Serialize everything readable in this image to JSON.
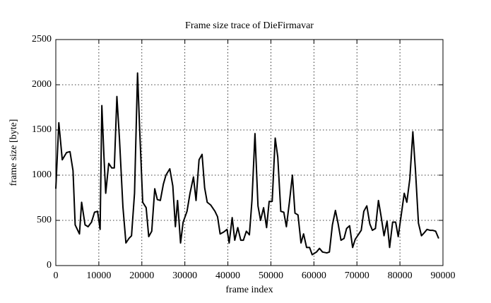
{
  "chart_data": {
    "type": "line",
    "title": "Frame size trace of DieFirmavar",
    "x_label": "frame index",
    "y_label": "frame size [byte]",
    "xlim": [
      0,
      90000
    ],
    "xticks": [
      0,
      10000,
      20000,
      30000,
      40000,
      50000,
      60000,
      70000,
      80000,
      90000
    ],
    "ylim": [
      0,
      2500
    ],
    "yticks": [
      0,
      500,
      1000,
      1500,
      2000,
      2500
    ],
    "grid": true,
    "x": [
      0,
      700,
      1500,
      2500,
      3300,
      4000,
      4500,
      5500,
      6000,
      6800,
      7500,
      8300,
      9000,
      9700,
      10300,
      10700,
      11200,
      11600,
      12300,
      13000,
      13600,
      14200,
      14800,
      15600,
      16300,
      17000,
      17600,
      18300,
      19000,
      19500,
      20200,
      21000,
      21600,
      22300,
      23000,
      23600,
      24300,
      25000,
      25600,
      26500,
      27200,
      27800,
      28300,
      29000,
      29600,
      30500,
      31200,
      32000,
      32600,
      33300,
      34000,
      34600,
      35200,
      36000,
      37000,
      37600,
      38200,
      39000,
      39800,
      40300,
      41000,
      41600,
      42300,
      43000,
      43600,
      44300,
      45000,
      45600,
      46300,
      47000,
      47600,
      48300,
      49000,
      49600,
      50300,
      51000,
      51600,
      52300,
      53000,
      53600,
      54300,
      55000,
      55600,
      56300,
      57000,
      57600,
      58300,
      59000,
      59600,
      60600,
      61300,
      62000,
      63000,
      63600,
      64300,
      65000,
      65600,
      66300,
      67000,
      67600,
      68300,
      69000,
      69600,
      70300,
      71000,
      71600,
      72300,
      73000,
      73600,
      74300,
      75000,
      75600,
      76300,
      77000,
      77600,
      78300,
      79000,
      79600,
      80300,
      81000,
      81600,
      82300,
      83000,
      83600,
      84300,
      85000,
      85600,
      86300,
      87000,
      87600,
      88300,
      89000
    ],
    "series": [
      {
        "name": "frame size",
        "color": "#000000",
        "values": [
          850,
          1580,
          1170,
          1250,
          1260,
          1050,
          450,
          350,
          700,
          450,
          430,
          480,
          590,
          600,
          400,
          1770,
          1200,
          800,
          1130,
          1080,
          1080,
          1870,
          1400,
          650,
          250,
          300,
          330,
          800,
          2130,
          1500,
          700,
          640,
          320,
          380,
          850,
          730,
          720,
          900,
          1000,
          1070,
          880,
          430,
          720,
          250,
          480,
          600,
          800,
          980,
          720,
          1170,
          1230,
          860,
          700,
          670,
          600,
          540,
          350,
          370,
          400,
          250,
          530,
          280,
          420,
          280,
          280,
          380,
          340,
          720,
          1460,
          660,
          500,
          640,
          420,
          710,
          710,
          1410,
          1200,
          600,
          590,
          430,
          700,
          1000,
          580,
          560,
          250,
          350,
          200,
          200,
          120,
          150,
          190,
          150,
          140,
          150,
          450,
          610,
          470,
          280,
          300,
          410,
          440,
          200,
          290,
          340,
          390,
          600,
          660,
          460,
          390,
          410,
          720,
          550,
          330,
          490,
          200,
          480,
          480,
          320,
          560,
          800,
          700,
          960,
          1480,
          1060,
          470,
          330,
          360,
          400,
          390,
          390,
          380,
          300
        ]
      }
    ]
  }
}
